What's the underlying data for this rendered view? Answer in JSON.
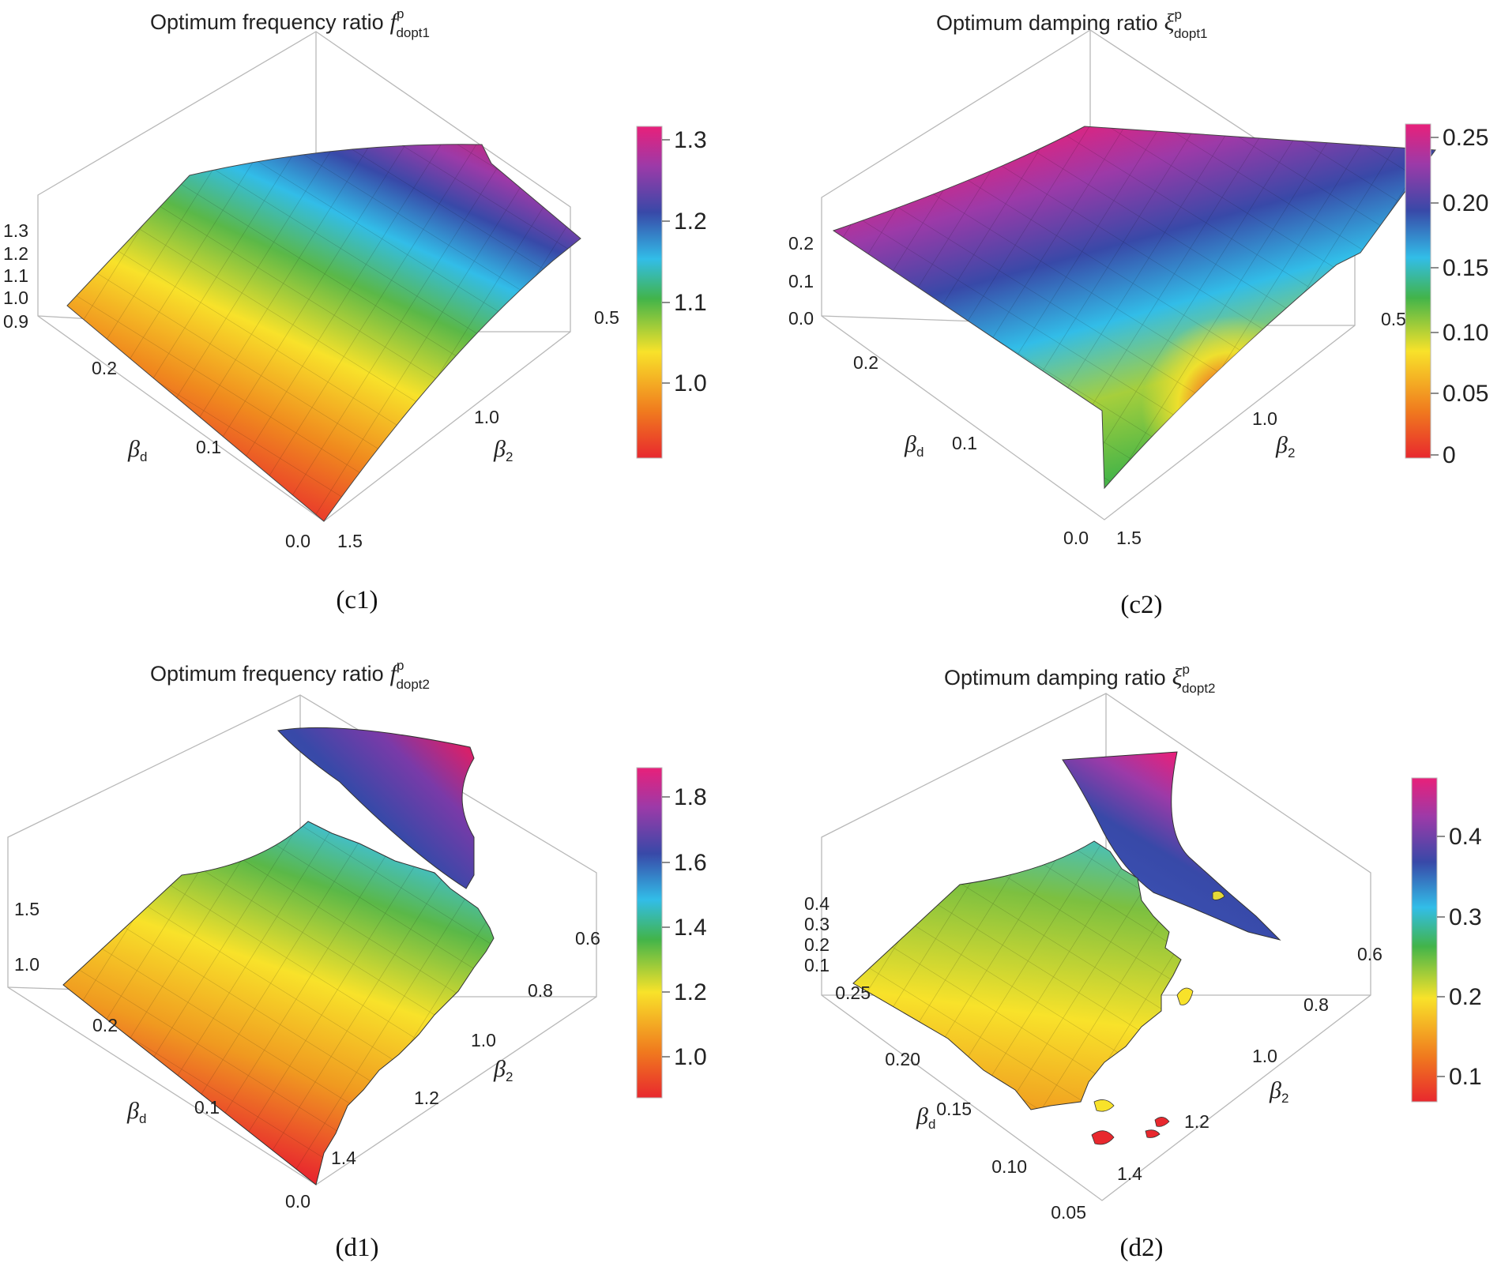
{
  "colors": {
    "rainbow": [
      "#e8282e",
      "#f07a1e",
      "#f8e22a",
      "#42b44a",
      "#32bde8",
      "#3849a8",
      "#9c3aa8",
      "#e8207a"
    ]
  },
  "chart_data": [
    {
      "type": "surface3d",
      "panel_label": "(c1)",
      "title": "Optimum frequency ratio",
      "title_symbol": "f",
      "title_sup": "p",
      "title_sub": "dopt1",
      "xlabel_symbol": "β",
      "xlabel_sub": "d",
      "ylabel_symbol": "β",
      "ylabel_sub": "2",
      "beta_d_ticks": [
        "0.0",
        "0.1",
        "0.2"
      ],
      "beta_2_ticks": [
        "1.5",
        "1.0",
        "0.5"
      ],
      "z_ticks": [
        "0.9",
        "1.0",
        "1.1",
        "1.2",
        "1.3"
      ],
      "colorbar_ticks": [
        "1.3",
        "1.2",
        "1.1",
        "1.0"
      ],
      "colorbar_range": [
        0.9,
        1.32
      ],
      "surface": [
        {
          "label": "β_d=0, β_2=1.5",
          "value": 0.9
        },
        {
          "label": "β_d=0.25, β_2=0.5",
          "value": 1.3
        }
      ]
    },
    {
      "type": "surface3d",
      "panel_label": "(c2)",
      "title": "Optimum damping ratio",
      "title_symbol": "ξ",
      "title_sup": "p",
      "title_sub": "dopt1",
      "xlabel_symbol": "β",
      "xlabel_sub": "d",
      "ylabel_symbol": "β",
      "ylabel_sub": "2",
      "beta_d_ticks": [
        "0.0",
        "0.1",
        "0.2"
      ],
      "beta_2_ticks": [
        "1.5",
        "1.0",
        "0.5"
      ],
      "z_ticks": [
        "0.0",
        "0.1",
        "0.2"
      ],
      "colorbar_ticks": [
        "0.25",
        "0.20",
        "0.15",
        "0.10",
        "0.05",
        "0"
      ],
      "colorbar_range": [
        0,
        0.26
      ],
      "surface": [
        {
          "label": "β_d=0, β_2=1.5",
          "value": 0.1
        },
        {
          "label": "β_d=0.25, β_2=0.5",
          "value": 0.25
        }
      ]
    },
    {
      "type": "surface3d",
      "panel_label": "(d1)",
      "title": "Optimum frequency ratio",
      "title_symbol": "f",
      "title_sup": "p",
      "title_sub": "dopt2",
      "xlabel_symbol": "β",
      "xlabel_sub": "d",
      "ylabel_symbol": "β",
      "ylabel_sub": "2",
      "beta_d_ticks": [
        "0.0",
        "0.1",
        "0.2"
      ],
      "beta_2_ticks": [
        "1.4",
        "1.2",
        "1.0",
        "0.8",
        "0.6"
      ],
      "z_ticks": [
        "1.0",
        "1.5"
      ],
      "colorbar_ticks": [
        "1.8",
        "1.6",
        "1.4",
        "1.2",
        "1.0"
      ],
      "colorbar_range": [
        0.88,
        1.9
      ],
      "surface": [
        {
          "label": "β_d=0, β_2=1.4",
          "value": 0.9
        },
        {
          "label": "β_d=0.25, β_2=0.6",
          "value": 1.85
        }
      ]
    },
    {
      "type": "surface3d",
      "panel_label": "(d2)",
      "title": "Optimum damping ratio",
      "title_symbol": "ξ",
      "title_sup": "p",
      "title_sub": "dopt2",
      "xlabel_symbol": "β",
      "xlabel_sub": "d",
      "ylabel_symbol": "β",
      "ylabel_sub": "2",
      "beta_d_ticks": [
        "0.05",
        "0.10",
        "0.15",
        "0.20",
        "0.25"
      ],
      "beta_2_ticks": [
        "1.4",
        "1.2",
        "1.0",
        "0.8",
        "0.6"
      ],
      "z_ticks": [
        "0.1",
        "0.2",
        "0.3",
        "0.4"
      ],
      "colorbar_ticks": [
        "0.4",
        "0.3",
        "0.2",
        "0.1"
      ],
      "colorbar_range": [
        0.05,
        0.47
      ],
      "surface": [
        {
          "label": "β_d=0.05, β_2=1.4",
          "value": 0.05
        },
        {
          "label": "β_d=0.25, β_2=0.6",
          "value": 0.45
        }
      ]
    }
  ]
}
